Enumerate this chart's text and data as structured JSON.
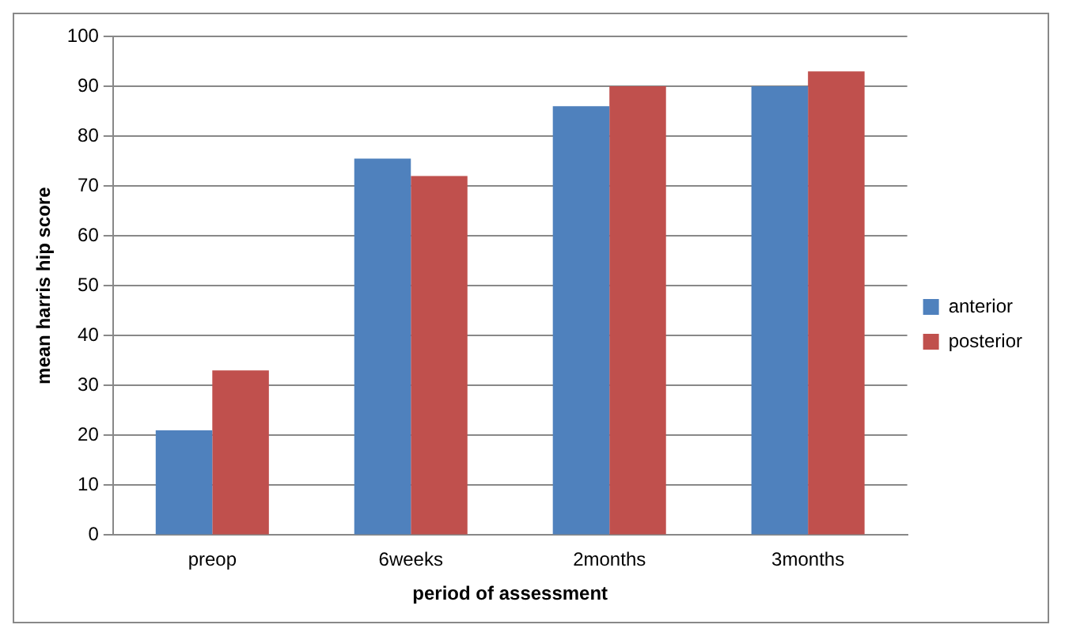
{
  "chart_data": {
    "type": "bar",
    "xlabel": "period of assessment",
    "ylabel": "mean harris hip score",
    "categories": [
      "preop",
      "6weeks",
      "2months",
      "3months"
    ],
    "series": [
      {
        "name": "anterior",
        "color": "#4f81bd",
        "values": [
          21,
          75.5,
          86,
          90
        ]
      },
      {
        "name": "posterior",
        "color": "#c0504d",
        "values": [
          33,
          72,
          90,
          93
        ]
      }
    ],
    "ylim": [
      0,
      100
    ],
    "yticks": [
      0,
      10,
      20,
      30,
      40,
      50,
      60,
      70,
      80,
      90,
      100
    ],
    "grid": "y",
    "legend": "right"
  }
}
